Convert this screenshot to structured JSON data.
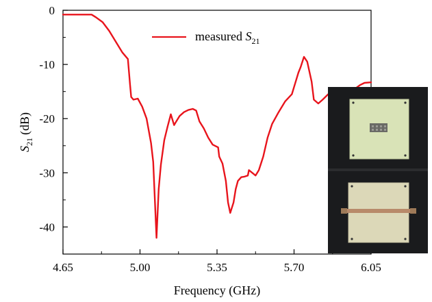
{
  "chart_data": {
    "type": "line",
    "xlabel": "Frequency (GHz)",
    "ylabel": {
      "main": "S",
      "sub": "21",
      "unit": "(dB)"
    },
    "xlim": [
      4.65,
      6.05
    ],
    "ylim": [
      -45,
      0
    ],
    "xticks": [
      "4.65",
      "5.00",
      "5.35",
      "5.70",
      "6.05"
    ],
    "xtick_values": [
      4.65,
      5.0,
      5.35,
      5.7,
      6.05
    ],
    "yticks": [
      "0",
      "-10",
      "-20",
      "-30",
      "-40"
    ],
    "ytick_values": [
      0,
      -10,
      -20,
      -30,
      -40
    ],
    "grid": false,
    "legend": {
      "placement": "top-center",
      "prefix": "measured ",
      "symbol": "S",
      "sub": "21"
    },
    "series": [
      {
        "name": "measured S21",
        "color": "#e8141c",
        "x": [
          4.65,
          4.78,
          4.8,
          4.83,
          4.86,
          4.89,
          4.92,
          4.945,
          4.955,
          4.96,
          4.97,
          4.99,
          5.01,
          5.03,
          5.05,
          5.06,
          5.075,
          5.085,
          5.095,
          5.11,
          5.125,
          5.14,
          5.155,
          5.165,
          5.18,
          5.2,
          5.22,
          5.24,
          5.255,
          5.27,
          5.29,
          5.31,
          5.33,
          5.355,
          5.36,
          5.375,
          5.39,
          5.395,
          5.4,
          5.41,
          5.425,
          5.435,
          5.445,
          5.46,
          5.475,
          5.49,
          5.495,
          5.51,
          5.525,
          5.54,
          5.56,
          5.58,
          5.6,
          5.63,
          5.66,
          5.69,
          5.705,
          5.72,
          5.73,
          5.745,
          5.76,
          5.78,
          5.79,
          5.81,
          5.83,
          5.855,
          5.87,
          5.88,
          5.895,
          5.91,
          5.93,
          5.95,
          5.98,
          6.0,
          6.02,
          6.05
        ],
        "values": [
          -0.8,
          -0.8,
          -1.3,
          -2.2,
          -3.8,
          -5.8,
          -7.8,
          -9.0,
          -13.8,
          -16.0,
          -16.5,
          -16.3,
          -17.8,
          -20.0,
          -24.5,
          -28.0,
          -42.0,
          -33.0,
          -28.5,
          -24.0,
          -21.5,
          -19.2,
          -21.2,
          -20.5,
          -19.5,
          -18.8,
          -18.4,
          -18.2,
          -18.5,
          -20.5,
          -21.8,
          -23.5,
          -24.8,
          -25.3,
          -27.0,
          -28.3,
          -31.5,
          -33.5,
          -35.5,
          -37.4,
          -35.5,
          -33.0,
          -31.5,
          -30.8,
          -30.7,
          -30.5,
          -29.5,
          -30.0,
          -30.5,
          -29.5,
          -27.0,
          -23.5,
          -21.0,
          -18.8,
          -16.8,
          -15.5,
          -13.5,
          -11.5,
          -10.5,
          -8.6,
          -9.5,
          -13.2,
          -16.5,
          -17.2,
          -16.5,
          -15.5,
          -15.3,
          -14.8,
          -15.8,
          -15.3,
          -14.8,
          -14.6,
          -14.4,
          -13.8,
          -13.4,
          -13.3
        ]
      }
    ]
  },
  "inset": {
    "label": "fabricated prototype photo (top and bottom views)"
  }
}
